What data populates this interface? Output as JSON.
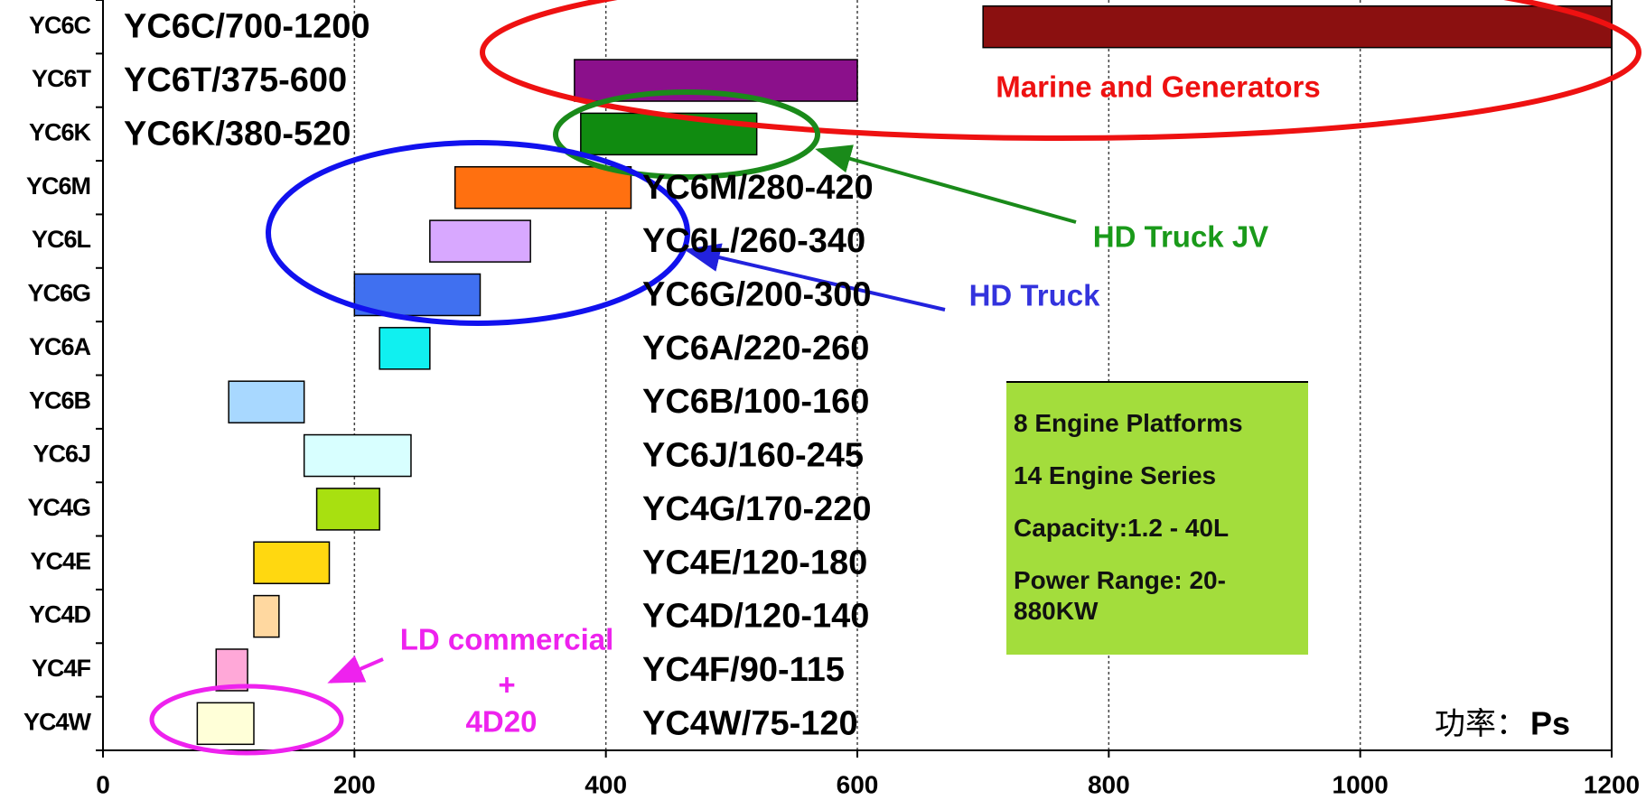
{
  "chart_data": {
    "type": "floating_bar",
    "categories": [
      "YC6C",
      "YC6T",
      "YC6K",
      "YC6M",
      "YC6L",
      "YC6G",
      "YC6A",
      "YC6B",
      "YC6J",
      "YC4G",
      "YC4E",
      "YC4D",
      "YC4F",
      "YC4W"
    ],
    "series": [
      {
        "name": "low",
        "values": [
          700,
          375,
          380,
          280,
          260,
          200,
          220,
          100,
          160,
          170,
          120,
          120,
          90,
          75
        ]
      },
      {
        "name": "high",
        "values": [
          1200,
          600,
          520,
          420,
          340,
          300,
          260,
          160,
          245,
          220,
          180,
          140,
          115,
          120
        ]
      }
    ],
    "value_labels": [
      "YC6C/700-1200",
      "YC6T/375-600",
      "YC6K/380-520",
      "YC6M/280-420",
      "YC6L/260-340",
      "YC6G/200-300",
      "YC6A/220-260",
      "YC6B/100-160",
      "YC6J/160-245",
      "YC4G/170-220",
      "YC4E/120-180",
      "YC4D/120-140",
      "YC4F/90-115",
      "YC4W/75-120"
    ],
    "colors": [
      "#8b1010",
      "#8b108b",
      "#108b10",
      "#ff7010",
      "#d8a8ff",
      "#4070f0",
      "#10f0f0",
      "#a8d8ff",
      "#d8ffff",
      "#a8e010",
      "#ffd810",
      "#ffd8a0",
      "#ffa8d8",
      "#ffffd8"
    ],
    "xlim": [
      0,
      1200
    ],
    "xticks": [
      0,
      200,
      400,
      600,
      800,
      1000,
      1200
    ],
    "grid": true,
    "x_unit_label": "功率：",
    "x_unit": "Ps",
    "annotations": {
      "marine": "Marine and Generators",
      "hd_truck_jv": "HD Truck JV",
      "hd_truck": "HD Truck",
      "ld_commercial": [
        "LD commercial",
        "+",
        "4D20"
      ]
    },
    "info_box": [
      "8 Engine Platforms",
      "14 Engine Series",
      "Capacity:1.2 - 40L",
      "Power Range: 20-880KW"
    ]
  }
}
